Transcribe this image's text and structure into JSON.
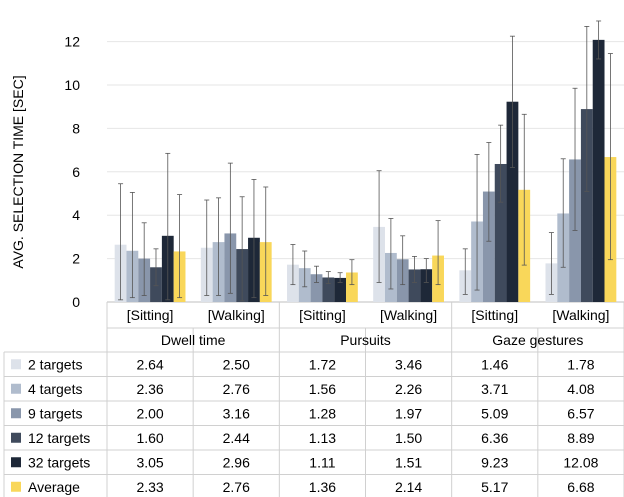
{
  "chart_data": {
    "type": "bar",
    "ylabel": "AVG. SELECTION TIME [SEC]",
    "ylim": [
      0,
      13
    ],
    "yticks": [
      0,
      2,
      4,
      6,
      8,
      10,
      12
    ],
    "grid": true,
    "groups": [
      {
        "method": "Dwell time",
        "conditions": [
          "[Sitting]",
          "[Walking]"
        ]
      },
      {
        "method": "Pursuits",
        "conditions": [
          "[Sitting]",
          "[Walking]"
        ]
      },
      {
        "method": "Gaze gestures",
        "conditions": [
          "[Sitting]",
          "[Walking]"
        ]
      }
    ],
    "categories": [
      "[Sitting]",
      "[Walking]",
      "[Sitting]",
      "[Walking]",
      "[Sitting]",
      "[Walking]"
    ],
    "series": [
      {
        "name": "2 targets",
        "color": "#dde2ea",
        "values": [
          2.64,
          2.5,
          1.72,
          3.46,
          1.46,
          1.78
        ],
        "labels": [
          "2.64",
          "2.50",
          "1.72",
          "3.46",
          "1.46",
          "1.78"
        ],
        "err_low": [
          0.1,
          0.3,
          0.8,
          0.9,
          0.35,
          0.35
        ],
        "err_high": [
          5.45,
          4.7,
          2.65,
          6.05,
          2.45,
          3.2
        ]
      },
      {
        "name": "4 targets",
        "color": "#b0bccd",
        "values": [
          2.36,
          2.76,
          1.56,
          2.26,
          3.71,
          4.08
        ],
        "labels": [
          "2.36",
          "2.76",
          "1.56",
          "2.26",
          "3.71",
          "4.08"
        ],
        "err_low": [
          0.2,
          0.3,
          0.7,
          0.6,
          0.55,
          1.6
        ],
        "err_high": [
          5.05,
          4.8,
          2.35,
          3.85,
          6.8,
          6.6
        ]
      },
      {
        "name": "9 targets",
        "color": "#8996ab",
        "values": [
          2.0,
          3.16,
          1.28,
          1.97,
          5.09,
          6.57
        ],
        "labels": [
          "2.00",
          "3.16",
          "1.28",
          "1.97",
          "5.09",
          "6.57"
        ],
        "err_low": [
          0.3,
          0.4,
          0.9,
          0.8,
          2.8,
          3.3
        ],
        "err_high": [
          3.65,
          6.4,
          1.65,
          3.05,
          7.35,
          9.85
        ]
      },
      {
        "name": "12 targets",
        "color": "#3f4a5c",
        "values": [
          1.6,
          2.44,
          1.13,
          1.5,
          6.36,
          8.89
        ],
        "labels": [
          "1.60",
          "2.44",
          "1.13",
          "1.50",
          "6.36",
          "8.89"
        ],
        "err_low": [
          0.75,
          0.05,
          0.85,
          0.9,
          4.6,
          5.1
        ],
        "err_high": [
          2.45,
          4.85,
          1.4,
          2.1,
          8.15,
          12.7
        ]
      },
      {
        "name": "32 targets",
        "color": "#1e2838",
        "values": [
          3.05,
          2.96,
          1.11,
          1.51,
          9.23,
          12.08
        ],
        "labels": [
          "3.05",
          "2.96",
          "1.11",
          "1.51",
          "9.23",
          "12.08"
        ],
        "err_low": [
          0.1,
          0.2,
          0.9,
          0.9,
          6.2,
          11.2
        ],
        "err_high": [
          6.85,
          5.65,
          1.35,
          2.0,
          12.25,
          12.95
        ]
      },
      {
        "name": "Average",
        "color": "#f9d75a",
        "values": [
          2.33,
          2.76,
          1.36,
          2.14,
          5.17,
          6.68
        ],
        "labels": [
          "2.33",
          "2.76",
          "1.36",
          "2.14",
          "5.17",
          "6.68"
        ],
        "err_low": [
          0.2,
          0.3,
          0.8,
          0.8,
          1.7,
          1.95
        ],
        "err_high": [
          4.95,
          5.3,
          1.95,
          3.75,
          8.65,
          11.45
        ]
      }
    ]
  }
}
